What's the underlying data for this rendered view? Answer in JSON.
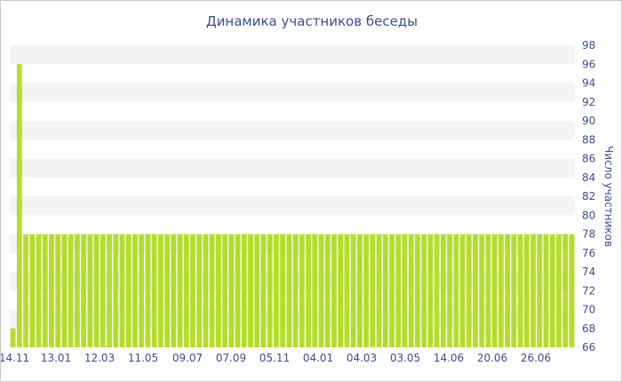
{
  "chart_data": {
    "type": "bar",
    "title": "Динамика участников беседы",
    "xlabel": "",
    "ylabel": "Число участников",
    "ylim": [
      66,
      98
    ],
    "y_ticks": [
      66,
      68,
      70,
      72,
      74,
      76,
      78,
      80,
      82,
      84,
      86,
      88,
      90,
      92,
      94,
      96,
      98
    ],
    "x_tick_labels": [
      "14.11",
      "13.01",
      "12.03",
      "11.05",
      "09.07",
      "07.09",
      "05.11",
      "04.01",
      "04.03",
      "03.05",
      "14.06",
      "20.06",
      "26.06"
    ],
    "grid": "horizontal alternating bands",
    "legend": "none",
    "values": [
      68,
      96,
      78,
      78,
      78,
      78,
      78,
      78,
      78,
      78,
      78,
      78,
      78,
      78,
      78,
      78,
      78,
      78,
      78,
      78,
      78,
      78,
      78,
      78,
      78,
      78,
      78,
      78,
      78,
      78,
      78,
      78,
      78,
      78,
      78,
      78,
      78,
      78,
      78,
      78,
      78,
      78,
      78,
      78,
      78,
      78,
      78,
      78,
      78,
      78,
      78,
      78,
      78,
      78,
      78,
      78,
      78,
      78,
      78,
      78,
      78,
      78,
      78,
      78,
      78,
      78,
      78,
      78,
      78,
      78,
      78,
      78,
      78,
      78,
      78,
      78,
      78,
      78,
      78,
      78,
      78,
      78,
      78,
      78,
      78,
      78,
      78,
      78
    ],
    "colors": {
      "bar": "#b5dd2b",
      "title": "#3a4f8f",
      "axis_text": "#3a4f8f",
      "band": "#f4f4f4"
    }
  }
}
